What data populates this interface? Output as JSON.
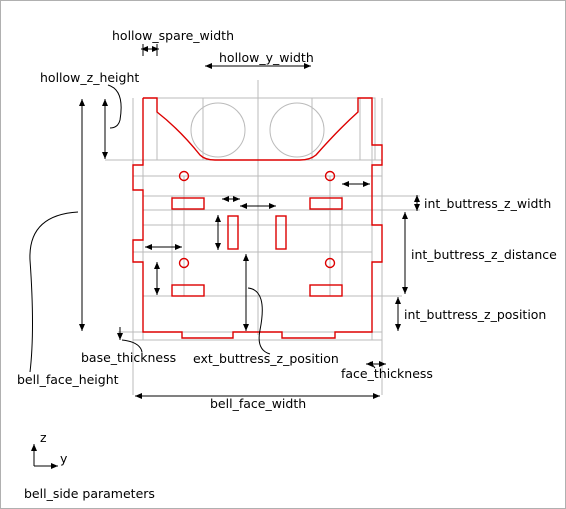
{
  "labels": {
    "hollow_spare_width": "hollow_spare_width",
    "hollow_y_width": "hollow_y_width",
    "hollow_z_height": "hollow_z_height",
    "int_buttress_z_width": "int_buttress_z_width",
    "int_buttress_z_distance": "int_buttress_z_distance",
    "int_buttress_z_position": "int_buttress_z_position",
    "base_thickness": "base_thickness",
    "bell_face_height": "bell_face_height",
    "ext_buttress_z_position": "ext_buttress_z_position",
    "face_thickness": "face_thickness",
    "bell_face_width": "bell_face_width"
  },
  "axes": {
    "z": "z",
    "y": "y"
  },
  "caption": "bell_side parameters",
  "colors": {
    "profile": "#dd0000",
    "guides": "#bbbbbb",
    "dimension": "#000000",
    "border": "#b0b0b0"
  }
}
